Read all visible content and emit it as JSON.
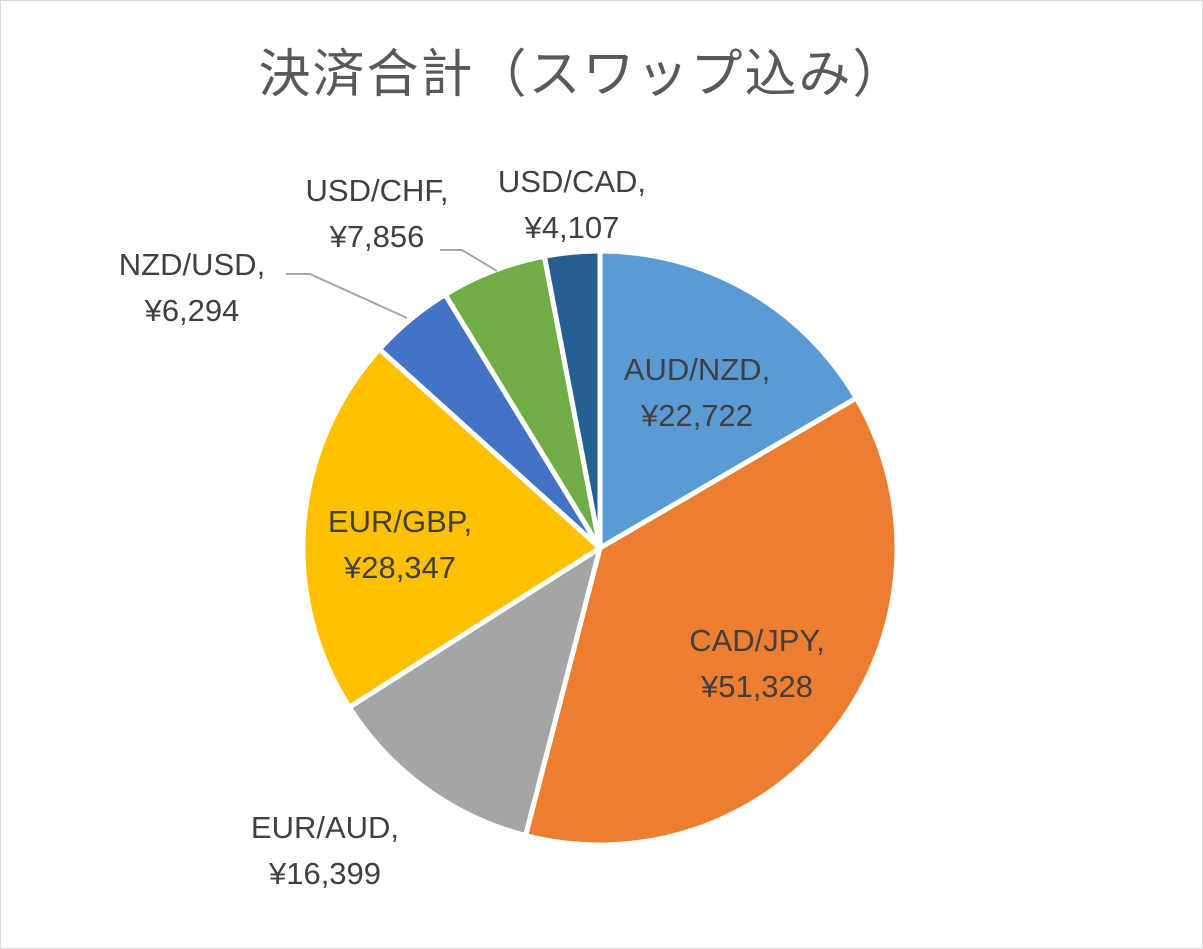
{
  "chart_data": {
    "type": "pie",
    "title": "決済合計（スワップ込み）",
    "slices": [
      {
        "name": "AUD/NZD",
        "label": "AUD/NZD,",
        "value": 22722,
        "value_label": "¥22,722",
        "color": "#5B9BD5"
      },
      {
        "name": "CAD/JPY",
        "label": "CAD/JPY,",
        "value": 51328,
        "value_label": "¥51,328",
        "color": "#ED7D31"
      },
      {
        "name": "EUR/AUD",
        "label": "EUR/AUD,",
        "value": 16399,
        "value_label": "¥16,399",
        "color": "#A5A5A5"
      },
      {
        "name": "EUR/GBP",
        "label": "EUR/GBP,",
        "value": 28347,
        "value_label": "¥28,347",
        "color": "#FFC000"
      },
      {
        "name": "NZD/USD",
        "label": "NZD/USD,",
        "value": 6294,
        "value_label": "¥6,294",
        "color": "#4472C4"
      },
      {
        "name": "USD/CHF",
        "label": "USD/CHF,",
        "value": 7856,
        "value_label": "¥7,856",
        "color": "#70AD47"
      },
      {
        "name": "USD/CAD",
        "label": "USD/CAD,",
        "value": 4107,
        "value_label": "¥4,107",
        "color": "#255E91"
      }
    ],
    "legend": "none",
    "start_angle": "12 o'clock, clockwise"
  }
}
